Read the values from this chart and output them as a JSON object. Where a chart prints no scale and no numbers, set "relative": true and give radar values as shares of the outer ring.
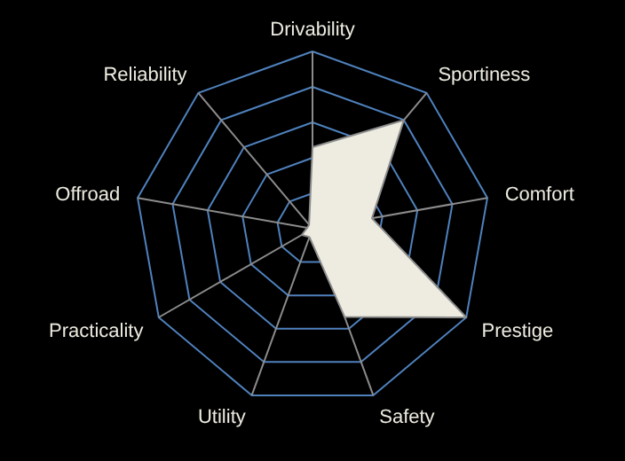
{
  "chart_data": {
    "type": "radar",
    "relative": true,
    "grid": true,
    "categories": [
      "Drivability",
      "Sportiness",
      "Comfort",
      "Prestige",
      "Safety",
      "Utility",
      "Practicality",
      "Offroad",
      "Reliability"
    ],
    "series": [
      {
        "color": "#eeece1",
        "values": [
          0.46,
          0.8,
          0.34,
          1.0,
          0.53,
          0.05,
          0.07,
          0.03,
          0.03
        ]
      }
    ]
  }
}
